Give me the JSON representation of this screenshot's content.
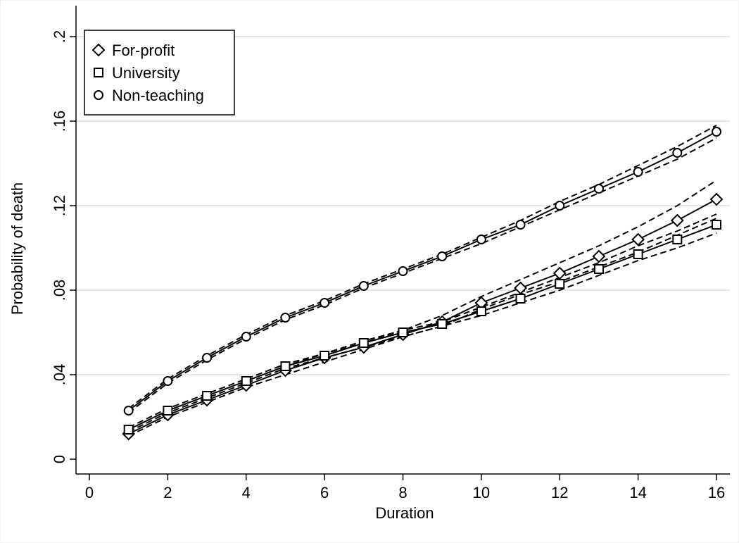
{
  "chart_data": {
    "type": "line",
    "xlabel": "Duration",
    "ylabel": "Probability of death",
    "xlim": [
      0,
      16
    ],
    "ylim": [
      0,
      0.2
    ],
    "x_ticks": [
      0,
      2,
      4,
      6,
      8,
      10,
      12,
      14,
      16
    ],
    "x_tick_labels": [
      "0",
      "2",
      "4",
      "6",
      "8",
      "10",
      "12",
      "14",
      "16"
    ],
    "y_ticks": [
      0,
      0.04,
      0.08,
      0.12,
      0.16,
      0.2
    ],
    "y_tick_labels": [
      "0",
      ".04",
      ".08",
      ".12",
      ".16",
      ".2"
    ],
    "grid": "horizontal",
    "legend_position": "top-left",
    "x": [
      1,
      2,
      3,
      4,
      5,
      6,
      7,
      8,
      9,
      10,
      11,
      12,
      13,
      14,
      15,
      16
    ],
    "series": [
      {
        "name": "For-profit",
        "marker": "diamond",
        "values": [
          0.012,
          0.021,
          0.028,
          0.035,
          0.042,
          0.048,
          0.053,
          0.059,
          0.065,
          0.074,
          0.081,
          0.088,
          0.096,
          0.104,
          0.113,
          0.123
        ],
        "ci_lower": [
          0.011,
          0.02,
          0.027,
          0.034,
          0.04,
          0.046,
          0.052,
          0.058,
          0.063,
          0.071,
          0.078,
          0.084,
          0.091,
          0.098,
          0.106,
          0.114
        ],
        "ci_upper": [
          0.014,
          0.023,
          0.03,
          0.037,
          0.044,
          0.05,
          0.055,
          0.061,
          0.068,
          0.077,
          0.085,
          0.093,
          0.101,
          0.11,
          0.12,
          0.132
        ]
      },
      {
        "name": "University",
        "marker": "square",
        "values": [
          0.014,
          0.023,
          0.03,
          0.037,
          0.044,
          0.049,
          0.055,
          0.06,
          0.064,
          0.07,
          0.076,
          0.083,
          0.09,
          0.097,
          0.104,
          0.111
        ],
        "ci_lower": [
          0.013,
          0.022,
          0.029,
          0.036,
          0.043,
          0.048,
          0.053,
          0.058,
          0.063,
          0.068,
          0.074,
          0.08,
          0.087,
          0.094,
          0.1,
          0.107
        ],
        "ci_upper": [
          0.015,
          0.024,
          0.031,
          0.038,
          0.045,
          0.05,
          0.056,
          0.061,
          0.065,
          0.072,
          0.079,
          0.086,
          0.093,
          0.101,
          0.108,
          0.116
        ]
      },
      {
        "name": "Non-teaching",
        "marker": "circle",
        "values": [
          0.023,
          0.037,
          0.048,
          0.058,
          0.067,
          0.074,
          0.082,
          0.089,
          0.096,
          0.104,
          0.111,
          0.12,
          0.128,
          0.136,
          0.145,
          0.155
        ],
        "ci_lower": [
          0.022,
          0.036,
          0.047,
          0.057,
          0.066,
          0.073,
          0.081,
          0.088,
          0.095,
          0.102,
          0.11,
          0.118,
          0.126,
          0.134,
          0.142,
          0.152
        ],
        "ci_upper": [
          0.024,
          0.038,
          0.049,
          0.059,
          0.068,
          0.075,
          0.083,
          0.09,
          0.097,
          0.105,
          0.113,
          0.122,
          0.13,
          0.139,
          0.148,
          0.158
        ]
      }
    ]
  }
}
